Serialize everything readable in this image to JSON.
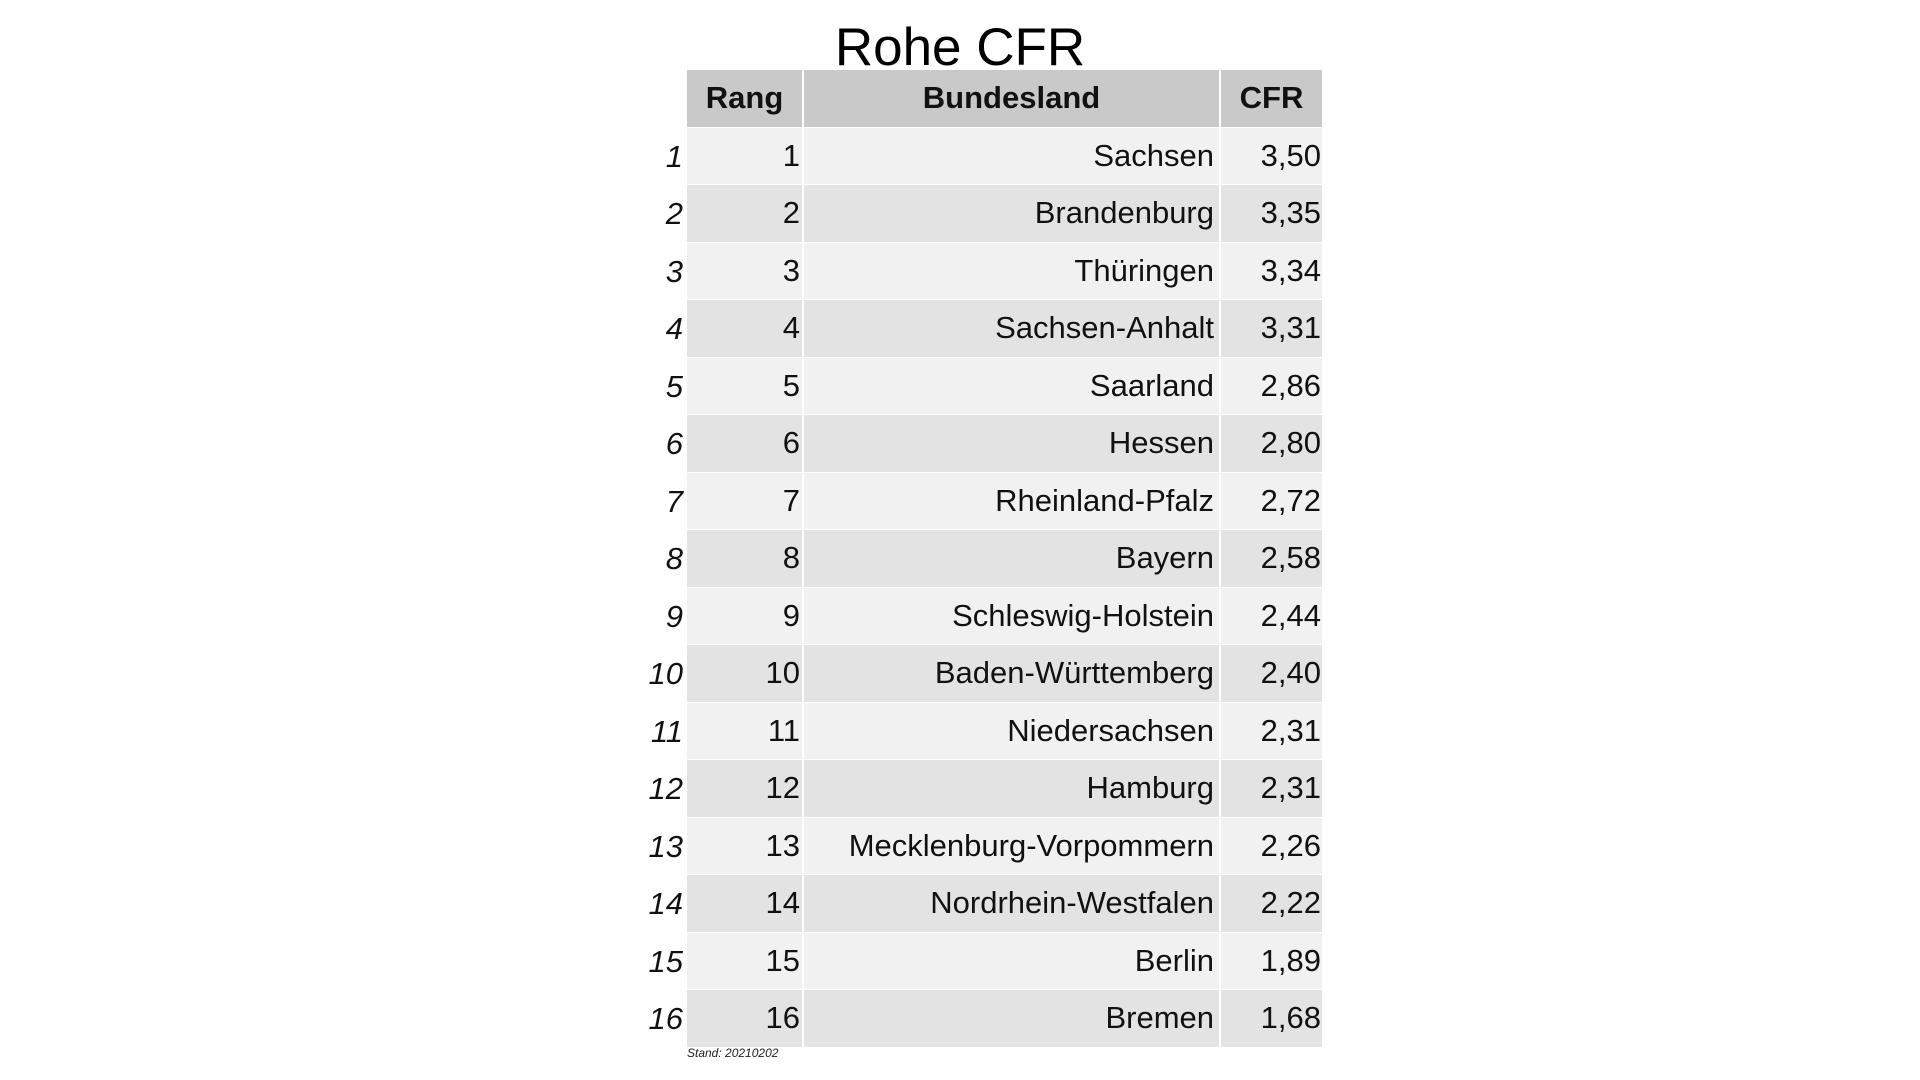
{
  "title": "Rohe CFR",
  "footnote": "Stand: 20210202",
  "chart_data": {
    "type": "table",
    "title": "Rohe CFR",
    "columns": [
      "Rang",
      "Bundesland",
      "CFR"
    ],
    "rows": [
      {
        "index": "1",
        "rang": "1",
        "land": "Sachsen",
        "cfr": "3,50"
      },
      {
        "index": "2",
        "rang": "2",
        "land": "Brandenburg",
        "cfr": "3,35"
      },
      {
        "index": "3",
        "rang": "3",
        "land": "Thüringen",
        "cfr": "3,34"
      },
      {
        "index": "4",
        "rang": "4",
        "land": "Sachsen-Anhalt",
        "cfr": "3,31"
      },
      {
        "index": "5",
        "rang": "5",
        "land": "Saarland",
        "cfr": "2,86"
      },
      {
        "index": "6",
        "rang": "6",
        "land": "Hessen",
        "cfr": "2,80"
      },
      {
        "index": "7",
        "rang": "7",
        "land": "Rheinland-Pfalz",
        "cfr": "2,72"
      },
      {
        "index": "8",
        "rang": "8",
        "land": "Bayern",
        "cfr": "2,58"
      },
      {
        "index": "9",
        "rang": "9",
        "land": "Schleswig-Holstein",
        "cfr": "2,44"
      },
      {
        "index": "10",
        "rang": "10",
        "land": "Baden-Württemberg",
        "cfr": "2,40"
      },
      {
        "index": "11",
        "rang": "11",
        "land": "Niedersachsen",
        "cfr": "2,31"
      },
      {
        "index": "12",
        "rang": "12",
        "land": "Hamburg",
        "cfr": "2,31"
      },
      {
        "index": "13",
        "rang": "13",
        "land": "Mecklenburg-Vorpommern",
        "cfr": "2,26"
      },
      {
        "index": "14",
        "rang": "14",
        "land": "Nordrhein-Westfalen",
        "cfr": "2,22"
      },
      {
        "index": "15",
        "rang": "15",
        "land": "Berlin",
        "cfr": "1,89"
      },
      {
        "index": "16",
        "rang": "16",
        "land": "Bremen",
        "cfr": "1,68"
      }
    ],
    "header_color": "#c9c9c9",
    "row_colors": [
      "#f1f1f1",
      "#e3e3e3"
    ]
  }
}
